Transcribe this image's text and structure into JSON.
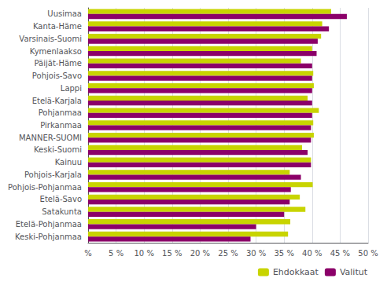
{
  "chart_data": {
    "type": "bar",
    "orientation": "horizontal",
    "categories": [
      "Uusimaa",
      "Kanta-Häme",
      "Varsinais-Suomi",
      "Kymenlaakso",
      "Päijät-Häme",
      "Pohjois-Savo",
      "Lappi",
      "Etelä-Karjala",
      "Pohjanmaa",
      "Pirkanmaa",
      "MANNER-SUOMI",
      "Keski-Suomi",
      "Kainuu",
      "Pohjois-Karjala",
      "Pohjois-Pohjanmaa",
      "Etelä-Savo",
      "Satakunta",
      "Etelä-Pohjanmaa",
      "Keski-Pohjanmaa"
    ],
    "series": [
      {
        "name": "Ehdokkaat",
        "color": "#c8d400",
        "values": [
          43.4,
          41.8,
          41.6,
          40.0,
          38.0,
          40.2,
          40.3,
          39.2,
          41.2,
          40.2,
          40.3,
          38.2,
          39.8,
          36.0,
          40.1,
          37.8,
          38.8,
          36.1,
          35.7
        ]
      },
      {
        "name": "Valitut",
        "color": "#8b0069",
        "values": [
          46.2,
          43.0,
          41.0,
          40.8,
          40.0,
          40.0,
          40.0,
          40.0,
          40.0,
          39.8,
          39.8,
          39.2,
          39.8,
          38.0,
          36.2,
          36.0,
          35.0,
          30.0,
          29.0
        ]
      }
    ],
    "xlim": [
      0,
      50
    ],
    "xticks": [
      {
        "value": 0,
        "label": "%"
      },
      {
        "value": 5,
        "label": "5 %"
      },
      {
        "value": 10,
        "label": "10 %"
      },
      {
        "value": 15,
        "label": "15 %"
      },
      {
        "value": 20,
        "label": "20 %"
      },
      {
        "value": 25,
        "label": "25 %"
      },
      {
        "value": 30,
        "label": "30 %"
      },
      {
        "value": 35,
        "label": "35 %"
      },
      {
        "value": 40,
        "label": "40 %"
      },
      {
        "value": 45,
        "label": "45 %"
      },
      {
        "value": 50,
        "label": "50 %"
      }
    ],
    "grid": true,
    "legend": "lower right"
  }
}
